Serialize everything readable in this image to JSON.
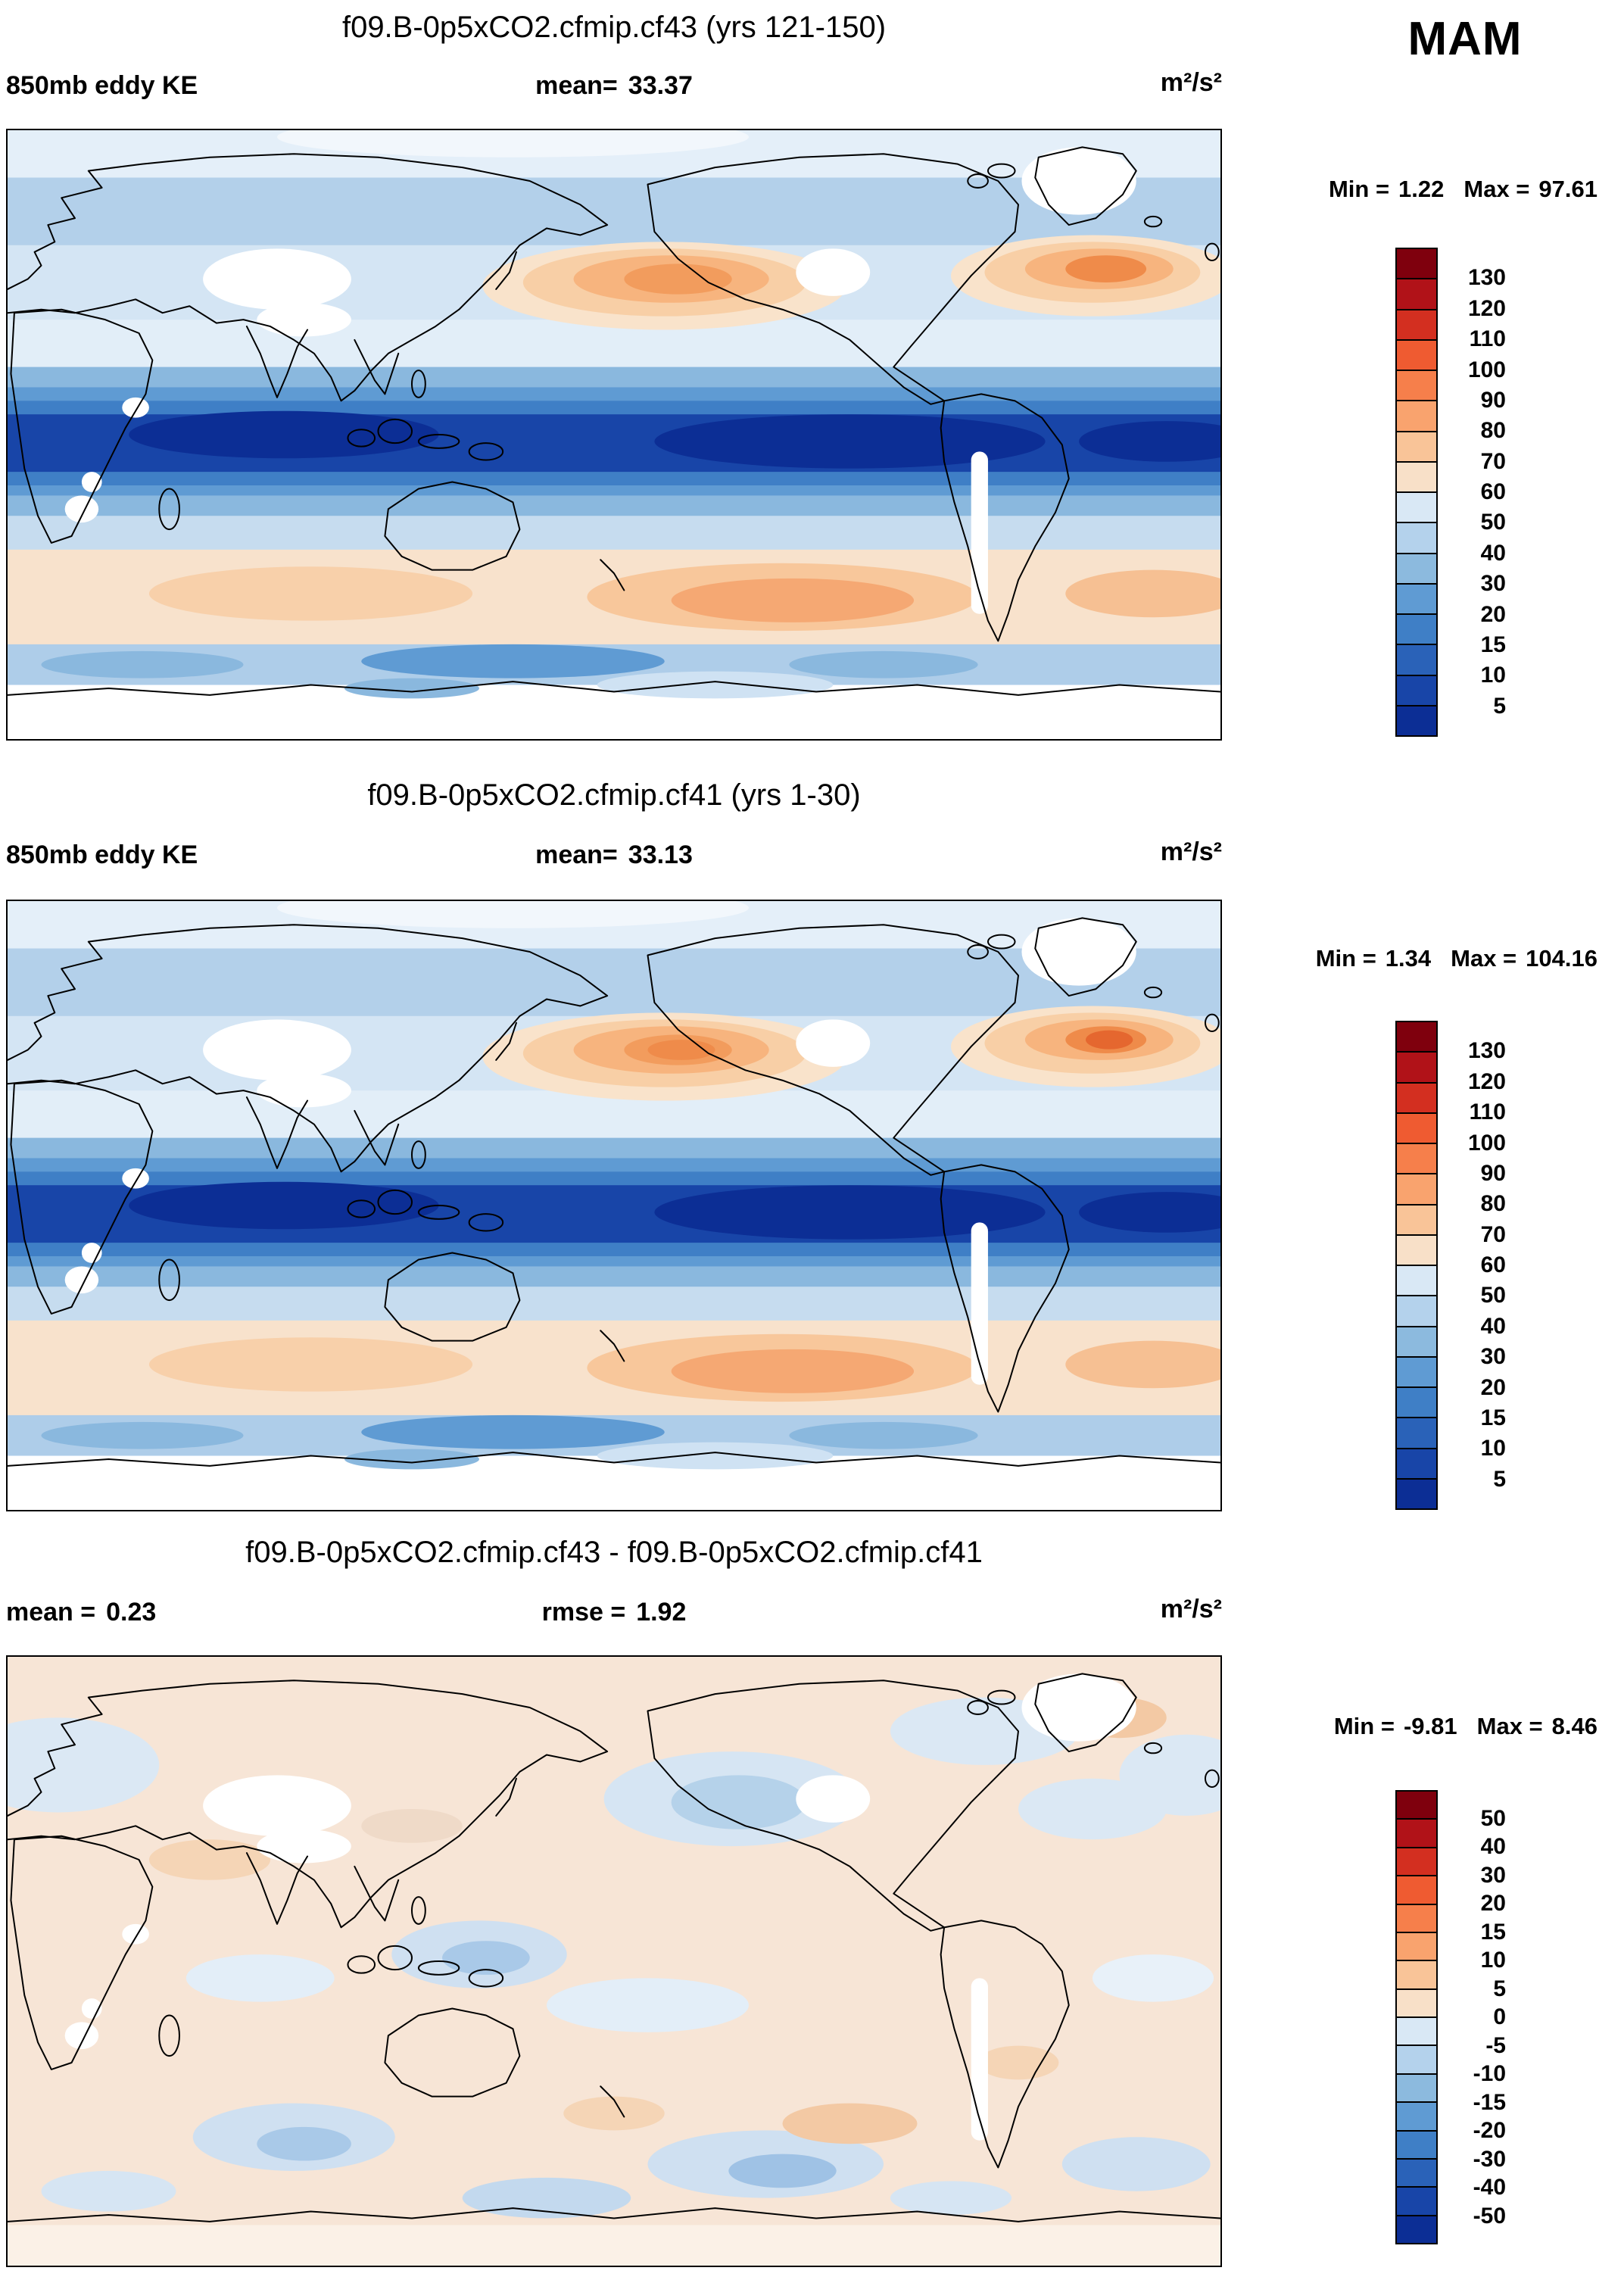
{
  "season_label": "MAM",
  "panels": [
    {
      "title": "f09.B-0p5xCO2.cfmip.cf43 (yrs 121-150)",
      "variable_label": "850mb eddy KE",
      "mean_label": "mean=",
      "mean_value": "33.37",
      "units": "m²/s²",
      "min_label": "Min =",
      "min_value": "1.22",
      "max_label": "Max =",
      "max_value": "97.61"
    },
    {
      "title": "f09.B-0p5xCO2.cfmip.cf41 (yrs 1-30)",
      "variable_label": "850mb eddy KE",
      "mean_label": "mean=",
      "mean_value": "33.13",
      "units": "m²/s²",
      "min_label": "Min =",
      "min_value": "1.34",
      "max_label": "Max =",
      "max_value": "104.16"
    },
    {
      "title": "f09.B-0p5xCO2.cfmip.cf43 - f09.B-0p5xCO2.cfmip.cf41",
      "mean_label": "mean =",
      "mean_value": "0.23",
      "rmse_label": "rmse =",
      "rmse_value": "1.92",
      "units": "m²/s²",
      "min_label": "Min =",
      "min_value": "-9.81",
      "max_label": "Max =",
      "max_value": "8.46"
    }
  ],
  "colorbars": {
    "climo": {
      "ticks_top_to_bottom": [
        "130",
        "120",
        "110",
        "100",
        "90",
        "80",
        "70",
        "60",
        "50",
        "40",
        "30",
        "20",
        "15",
        "10",
        "5"
      ],
      "colors_top_to_bottom": [
        "#7f000d",
        "#b11218",
        "#d32f20",
        "#ef5b31",
        "#f67f4b",
        "#f9a36e",
        "#f9c498",
        "#f8e0c8",
        "#d9e8f5",
        "#b4d2ec",
        "#8cbade",
        "#5f9bd3",
        "#3f7fc6",
        "#2a62b8",
        "#1845a8",
        "#0c2e95"
      ]
    },
    "diff": {
      "ticks_top_to_bottom": [
        "50",
        "40",
        "30",
        "20",
        "15",
        "10",
        "5",
        "0",
        "-5",
        "-10",
        "-15",
        "-20",
        "-30",
        "-40",
        "-50"
      ],
      "colors_top_to_bottom": [
        "#7f000d",
        "#b11218",
        "#d32f20",
        "#ef5b31",
        "#f67f4b",
        "#f9a36e",
        "#f9c498",
        "#f8e0c8",
        "#d9e8f5",
        "#b4d2ec",
        "#8cbade",
        "#5f9bd3",
        "#3f7fc6",
        "#2a62b8",
        "#1845a8",
        "#0c2e95"
      ]
    }
  },
  "chart_data": [
    {
      "type": "heatmap",
      "subtype": "global contour map, cylindrical lat-lon, dateline-spanning (0E at left edge)",
      "title": "f09.B-0p5xCO2.cfmip.cf43 (yrs 121-150)",
      "variable": "850mb eddy KE",
      "season": "MAM",
      "units": "m²/s²",
      "mean": 33.37,
      "min": 1.22,
      "max": 97.61,
      "contour_levels": [
        5,
        10,
        15,
        20,
        30,
        40,
        50,
        60,
        70,
        80,
        90,
        100,
        110,
        120,
        130
      ],
      "palette": "16-band blue(low)-to-red(high) diverging",
      "legend_position": "right",
      "features": "maxima (orange, 70-100) in N Pacific and N Atlantic storm tracks and circumpolar Southern Ocean band; minima (dark blue, <15) across tropics; white missing-data over high terrain (Tibet, Greenland, Rockies, Andes, Antarctica)"
    },
    {
      "type": "heatmap",
      "subtype": "global contour map, cylindrical lat-lon, dateline-spanning (0E at left edge)",
      "title": "f09.B-0p5xCO2.cfmip.cf41 (yrs 1-30)",
      "variable": "850mb eddy KE",
      "season": "MAM",
      "units": "m²/s²",
      "mean": 33.13,
      "min": 1.34,
      "max": 104.16,
      "contour_levels": [
        5,
        10,
        15,
        20,
        30,
        40,
        50,
        60,
        70,
        80,
        90,
        100,
        110,
        120,
        130
      ],
      "palette": "16-band blue(low)-to-red(high) diverging",
      "legend_position": "right",
      "features": "same climatological pattern as case cf43; slightly stronger N Atlantic storm-track maximum"
    },
    {
      "type": "heatmap",
      "subtype": "global contour map, difference plot",
      "title": "f09.B-0p5xCO2.cfmip.cf43 - f09.B-0p5xCO2.cfmip.cf41",
      "variable": "850mb eddy KE difference",
      "season": "MAM",
      "units": "m²/s²",
      "mean": 0.23,
      "rmse": 1.92,
      "min": -9.81,
      "max": 8.46,
      "contour_levels": [
        -50,
        -40,
        -30,
        -20,
        -15,
        -10,
        -5,
        0,
        5,
        10,
        15,
        20,
        30,
        40,
        50
      ],
      "palette": "16-band blue(negative)-to-red(positive) diverging",
      "legend_position": "right",
      "features": "mostly near-zero pale values (0 to 5 peach) with scattered weak negative (pale blue) patches over N Pacific, N Atlantic, W Pacific and Southern Ocean"
    }
  ]
}
